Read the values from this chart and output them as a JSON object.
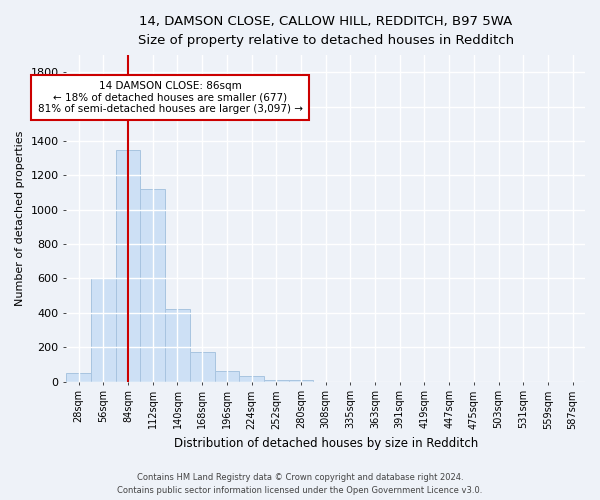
{
  "title1": "14, DAMSON CLOSE, CALLOW HILL, REDDITCH, B97 5WA",
  "title2": "Size of property relative to detached houses in Redditch",
  "xlabel": "Distribution of detached houses by size in Redditch",
  "ylabel": "Number of detached properties",
  "footnote1": "Contains HM Land Registry data © Crown copyright and database right 2024.",
  "footnote2": "Contains public sector information licensed under the Open Government Licence v3.0.",
  "annotation_line1": "14 DAMSON CLOSE: 86sqm",
  "annotation_line2": "← 18% of detached houses are smaller (677)",
  "annotation_line3": "81% of semi-detached houses are larger (3,097) →",
  "bar_color": "#cde0f5",
  "bar_edge_color": "#a8c4e0",
  "vline_color": "#cc0000",
  "vline_x": 2,
  "categories": [
    "28sqm",
    "56sqm",
    "84sqm",
    "112sqm",
    "140sqm",
    "168sqm",
    "196sqm",
    "224sqm",
    "252sqm",
    "280sqm",
    "308sqm",
    "335sqm",
    "363sqm",
    "391sqm",
    "419sqm",
    "447sqm",
    "475sqm",
    "503sqm",
    "531sqm",
    "559sqm",
    "587sqm"
  ],
  "values": [
    50,
    600,
    1350,
    1120,
    420,
    170,
    60,
    30,
    10,
    10,
    0,
    0,
    0,
    0,
    0,
    0,
    0,
    0,
    0,
    0,
    0
  ],
  "ylim": [
    0,
    1900
  ],
  "yticks": [
    0,
    200,
    400,
    600,
    800,
    1000,
    1200,
    1400,
    1600,
    1800
  ],
  "background_color": "#eef2f8",
  "plot_bg_color": "#eef2f8",
  "grid_color": "#ffffff",
  "title1_fontsize": 10,
  "title2_fontsize": 9
}
